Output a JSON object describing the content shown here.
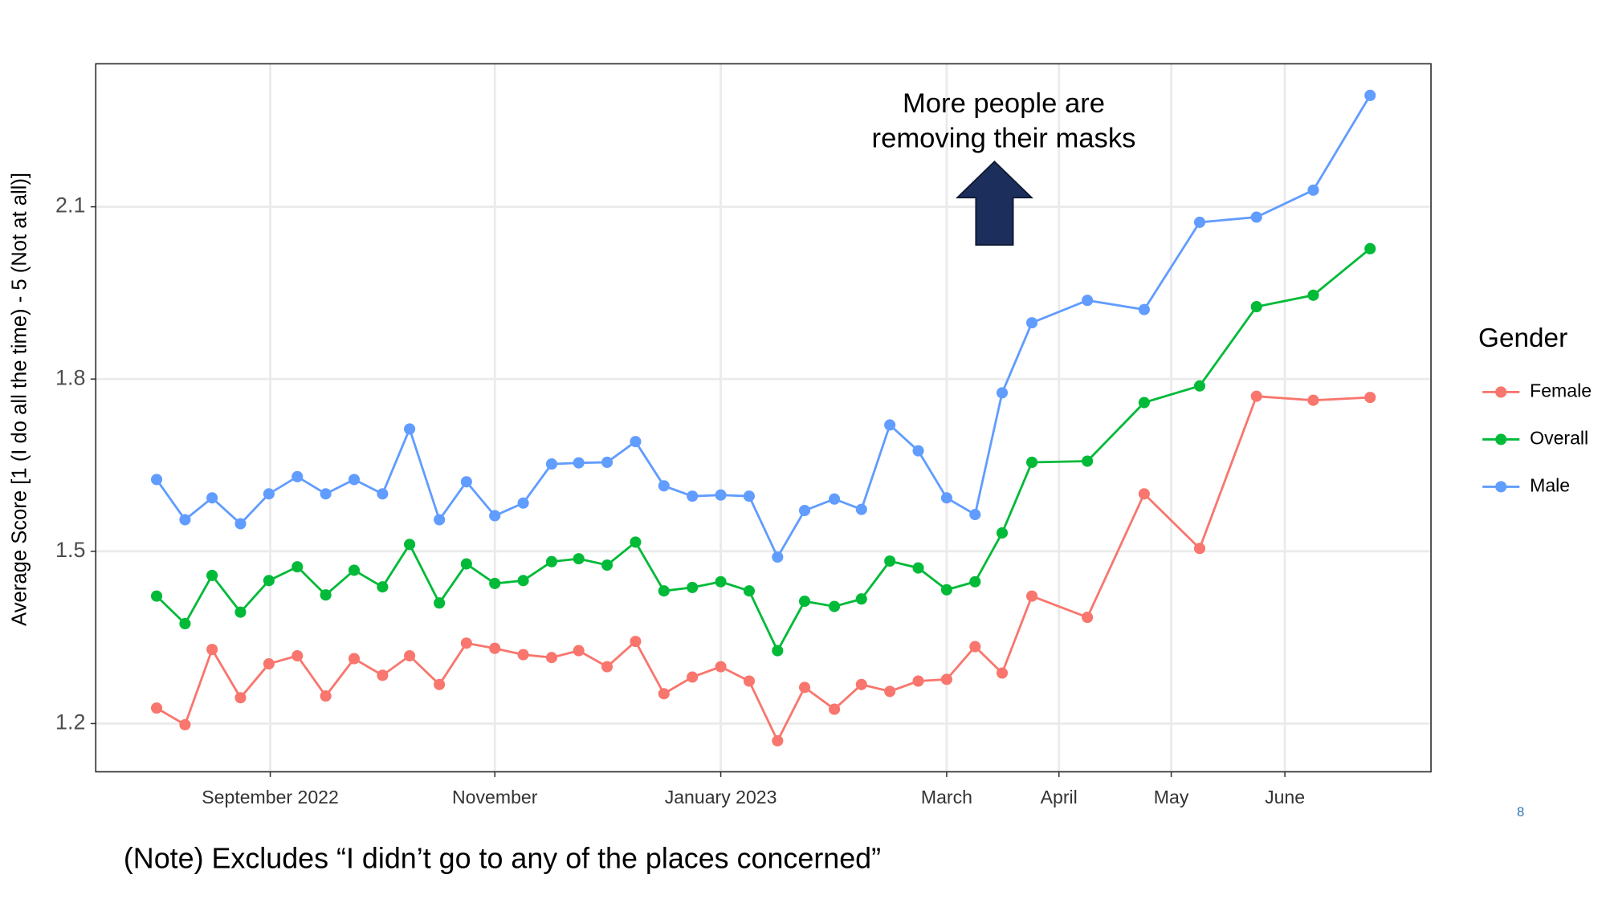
{
  "chart_data": {
    "type": "line",
    "y_label": "Average Score [1 (I do all the time) - 5 (Not at all)]",
    "annotation": [
      "More people are",
      "removing their masks"
    ],
    "legend_title": "Gender",
    "legend": "right",
    "grid": true,
    "x": [
      2022.583,
      2022.604,
      2022.624,
      2022.645,
      2022.666,
      2022.687,
      2022.708,
      2022.729,
      2022.75,
      2022.77,
      2022.792,
      2022.812,
      2022.833,
      2022.854,
      2022.875,
      2022.895,
      2022.916,
      2022.937,
      2022.958,
      2022.979,
      2023.0,
      2023.021,
      2023.042,
      2023.062,
      2023.084,
      2023.104,
      2023.125,
      2023.146,
      2023.167,
      2023.188,
      2023.208,
      2023.23,
      2023.271,
      2023.313,
      2023.354,
      2023.396,
      2023.438,
      2023.48
    ],
    "xlim": [
      2022.538,
      2023.525
    ],
    "xticks": [
      {
        "value": 2022.667,
        "label": "September 2022"
      },
      {
        "value": 2022.833,
        "label": "November"
      },
      {
        "value": 2023.0,
        "label": "January 2023"
      },
      {
        "value": 2023.167,
        "label": "March"
      },
      {
        "value": 2023.25,
        "label": "April"
      },
      {
        "value": 2023.333,
        "label": "May"
      },
      {
        "value": 2023.417,
        "label": "June"
      }
    ],
    "ylim": [
      1.116,
      2.349
    ],
    "yticks": [
      1.2,
      1.5,
      1.8,
      2.1
    ],
    "series": [
      {
        "name": "Female",
        "color": "#F8766D",
        "values": [
          1.227,
          1.198,
          1.329,
          1.245,
          1.304,
          1.318,
          1.248,
          1.313,
          1.284,
          1.318,
          1.268,
          1.34,
          1.331,
          1.32,
          1.315,
          1.327,
          1.299,
          1.343,
          1.252,
          1.281,
          1.299,
          1.274,
          1.17,
          1.263,
          1.225,
          1.268,
          1.256,
          1.274,
          1.277,
          1.334,
          1.288,
          1.422,
          1.385,
          1.6,
          1.505,
          1.77,
          1.763,
          1.768
        ]
      },
      {
        "name": "Overall",
        "color": "#00BA38",
        "values": [
          1.422,
          1.374,
          1.458,
          1.394,
          1.449,
          1.473,
          1.424,
          1.467,
          1.438,
          1.512,
          1.41,
          1.478,
          1.444,
          1.449,
          1.482,
          1.487,
          1.476,
          1.516,
          1.431,
          1.437,
          1.447,
          1.431,
          1.327,
          1.413,
          1.404,
          1.417,
          1.483,
          1.471,
          1.433,
          1.447,
          1.532,
          1.655,
          1.657,
          1.759,
          1.788,
          1.926,
          1.946,
          2.027
        ]
      },
      {
        "name": "Male",
        "color": "#619CFF",
        "values": [
          1.625,
          1.555,
          1.593,
          1.548,
          1.6,
          1.63,
          1.6,
          1.625,
          1.6,
          1.713,
          1.555,
          1.621,
          1.562,
          1.584,
          1.652,
          1.654,
          1.655,
          1.691,
          1.614,
          1.596,
          1.598,
          1.596,
          1.49,
          1.571,
          1.591,
          1.573,
          1.72,
          1.675,
          1.593,
          1.564,
          1.776,
          1.898,
          1.937,
          1.921,
          2.073,
          2.082,
          2.129,
          2.294
        ]
      }
    ]
  },
  "note": "(Note) Excludes “I didn’t go to any of the places concerned”",
  "page_number": "8"
}
